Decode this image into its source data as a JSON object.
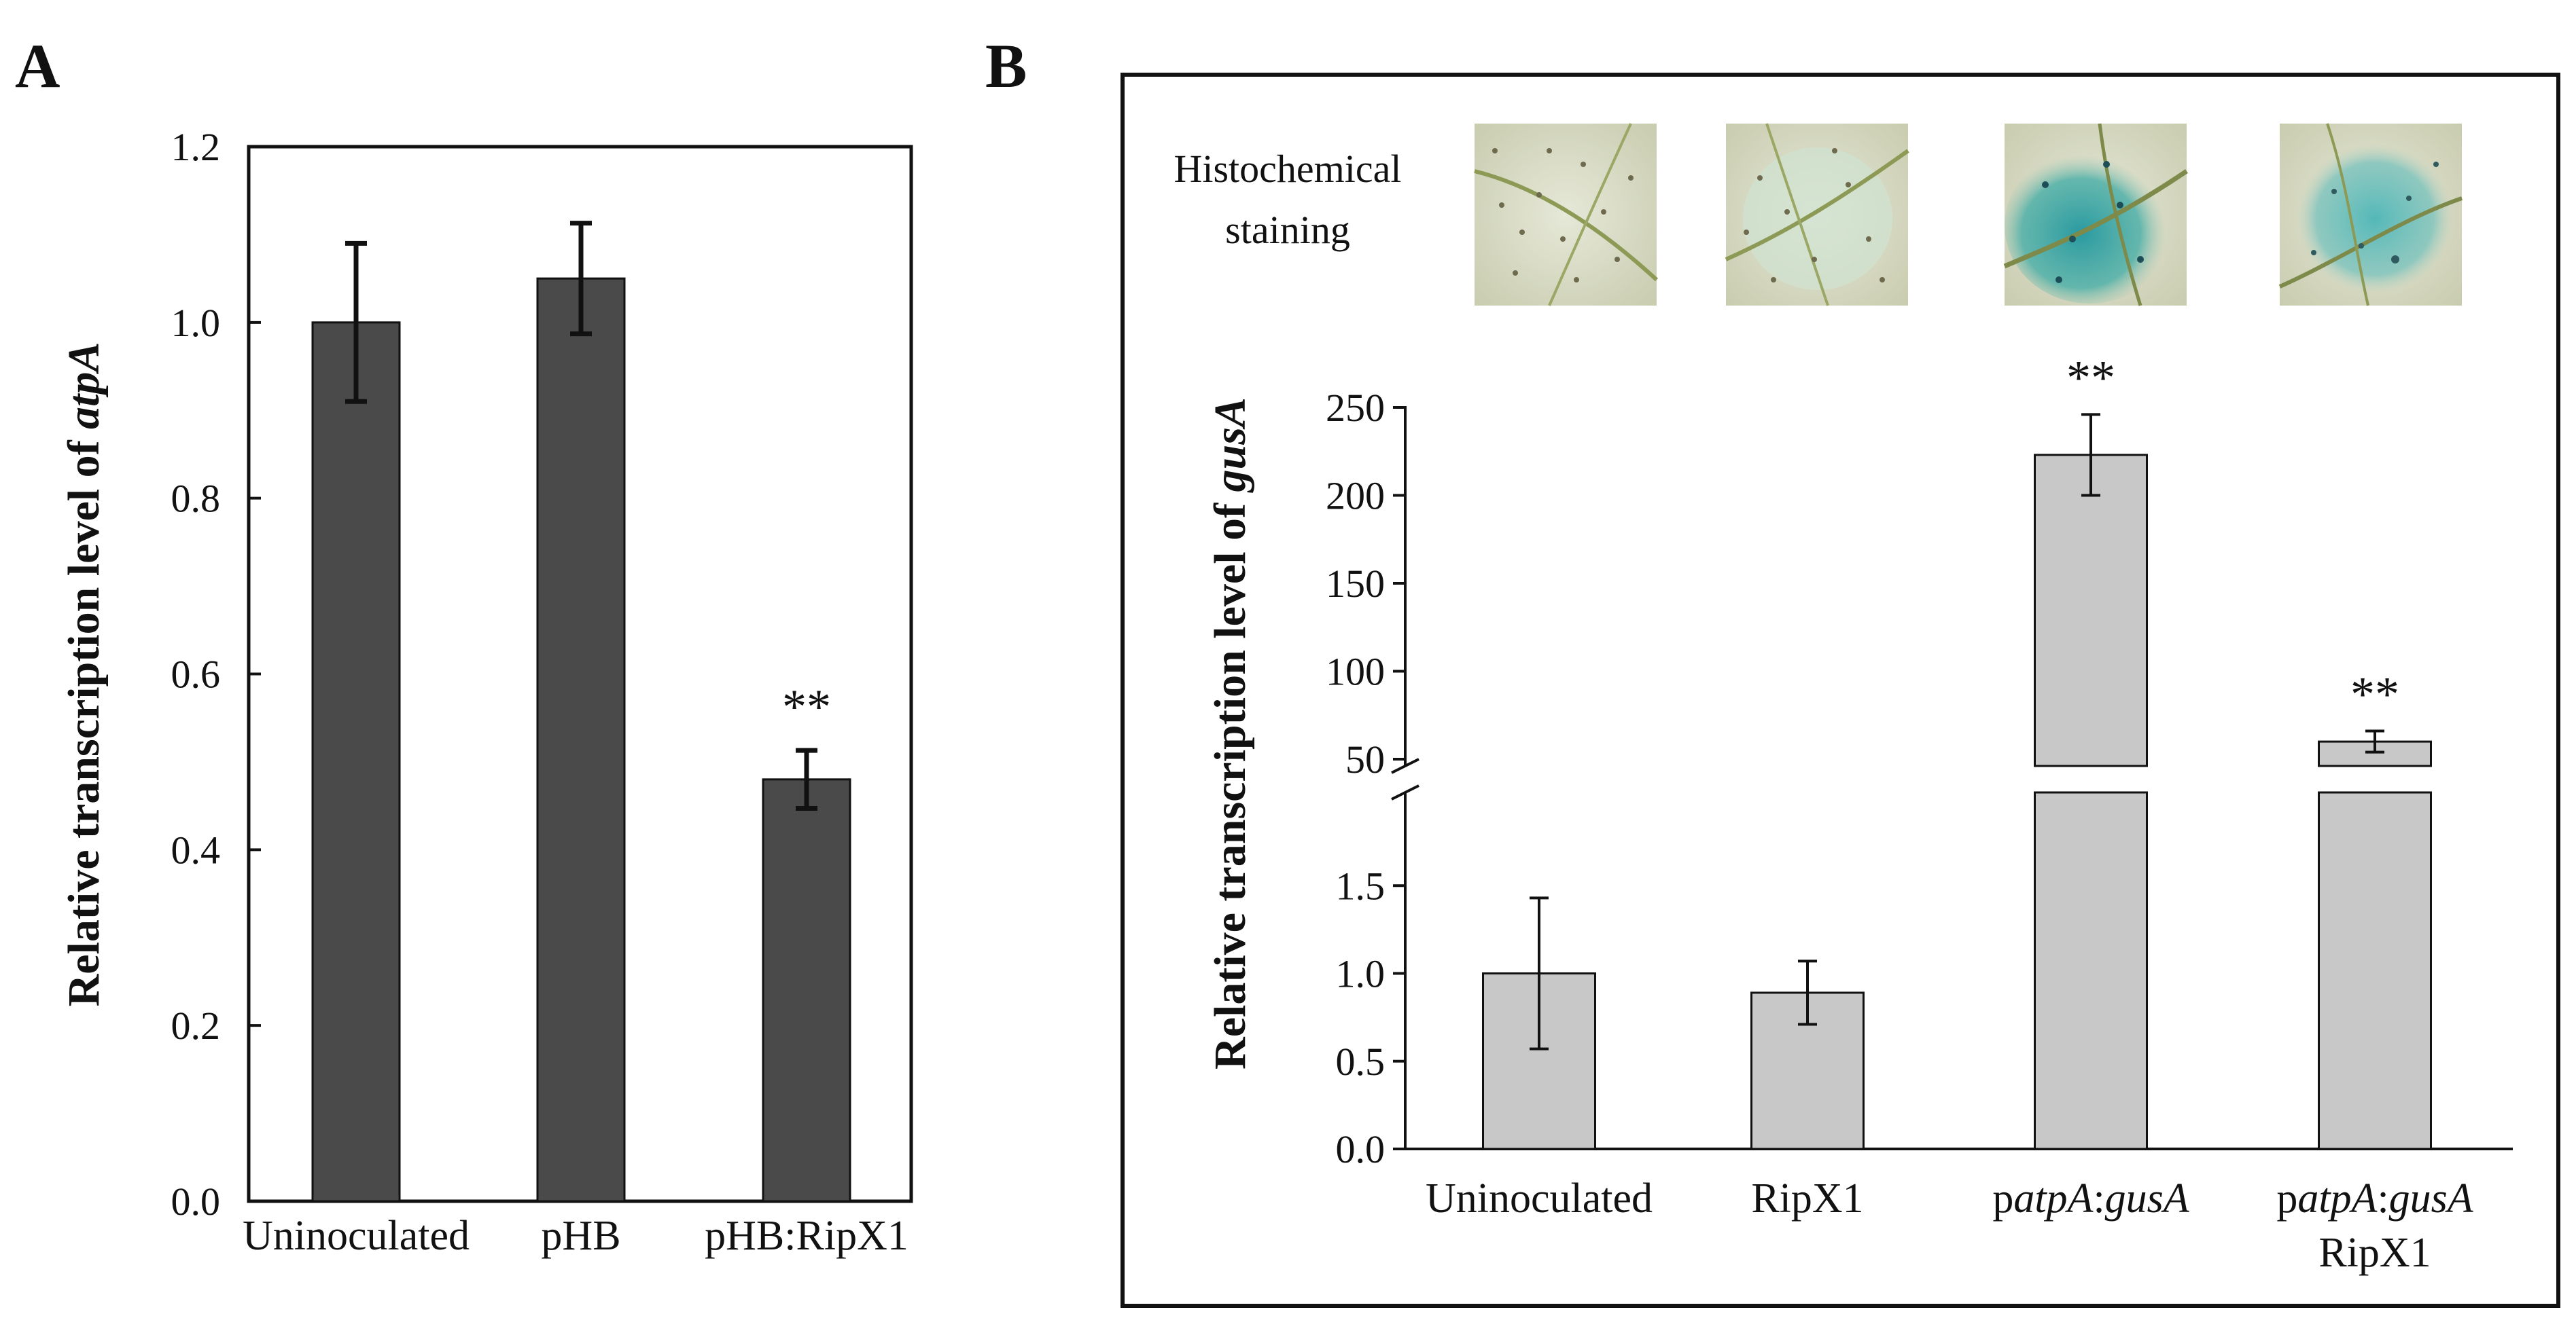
{
  "panel_a": {
    "letter": "A"
  },
  "panel_b": {
    "letter": "B",
    "staining_label_line1": "Histochemical",
    "staining_label_line2": "staining"
  },
  "chart_data": [
    {
      "id": "A",
      "type": "bar",
      "title": "",
      "xlabel": "",
      "ylabel_prefix": "Relative transcription level of ",
      "ylabel_italic": "atpA",
      "categories": [
        "Uninoculated",
        "pHB",
        "pHB:RipX1"
      ],
      "values": [
        1.0,
        1.05,
        0.48
      ],
      "errors": [
        0.09,
        0.063,
        0.033
      ],
      "significance": [
        "",
        "",
        "**"
      ],
      "ylim": [
        0,
        1.2
      ],
      "yticks": [
        "0.0",
        "0.2",
        "0.4",
        "0.6",
        "0.8",
        "1.0",
        "1.2"
      ],
      "bar_color": "#4a4a4a"
    },
    {
      "id": "B",
      "type": "bar",
      "title": "",
      "xlabel": "",
      "ylabel_prefix": "Relative transcription level of ",
      "ylabel_italic": "gusA",
      "categories": [
        "Uninoculated",
        "RipX1",
        "patpA:gusA",
        "patpA:gusA RipX1"
      ],
      "values": [
        1.0,
        0.89,
        223,
        60
      ],
      "errors": [
        0.43,
        0.18,
        23,
        6
      ],
      "significance": [
        "",
        "",
        "**",
        "**"
      ],
      "broken_axis": true,
      "lower_ylim": [
        0,
        2
      ],
      "lower_yticks": [
        "0.0",
        "0.5",
        "1.0",
        "1.5"
      ],
      "upper_ylim": [
        50,
        250
      ],
      "upper_yticks": [
        "50",
        "100",
        "150",
        "200",
        "250"
      ],
      "bar_color": "#c8c8c8"
    }
  ],
  "staining_images": [
    {
      "icon": "leaf-disc-photo",
      "tint": "none"
    },
    {
      "icon": "leaf-disc-photo",
      "tint": "faint-blue"
    },
    {
      "icon": "leaf-disc-photo",
      "tint": "blue"
    },
    {
      "icon": "leaf-disc-photo",
      "tint": "blue"
    }
  ]
}
